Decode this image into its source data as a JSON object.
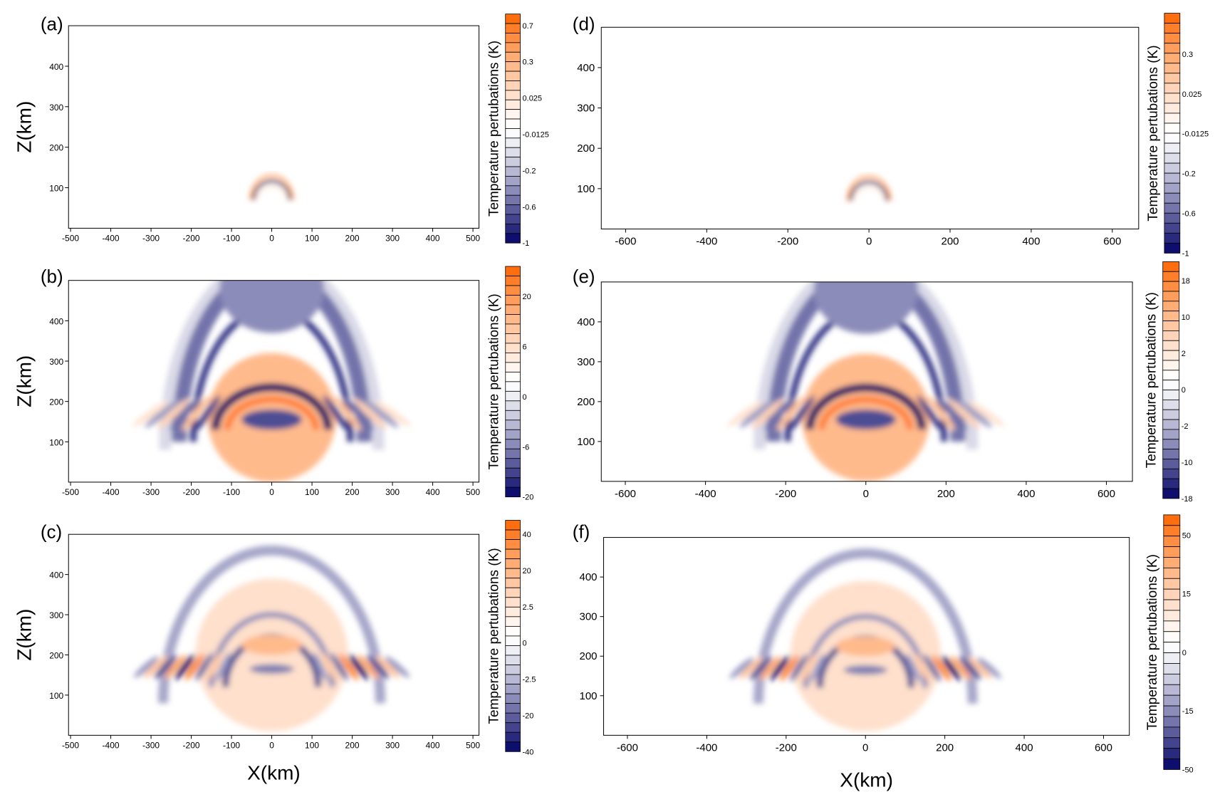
{
  "chart_data": [
    {
      "panel": "(a)",
      "type": "heatmap",
      "ylabel": "Z(km)",
      "xlabel": "",
      "xlim": [
        -505,
        515
      ],
      "ylim": [
        0,
        500
      ],
      "xticks": [
        -500,
        -400,
        -300,
        -200,
        -100,
        0,
        100,
        200,
        300,
        400,
        500
      ],
      "yticks": [
        100,
        200,
        300,
        400
      ],
      "colorbar": {
        "label": "Temperature pertubations (K)",
        "levels": 24,
        "ticks": [
          "0.7",
          "0.3",
          "0.025",
          "-0.0125",
          "-0.2",
          "-0.6",
          "-1"
        ]
      }
    },
    {
      "panel": "(b)",
      "type": "heatmap",
      "ylabel": "Z(km)",
      "xlabel": "",
      "xlim": [
        -505,
        515
      ],
      "ylim": [
        0,
        500
      ],
      "xticks": [
        -500,
        -400,
        -300,
        -200,
        -100,
        0,
        100,
        200,
        300,
        400,
        500
      ],
      "yticks": [
        100,
        200,
        300,
        400
      ],
      "colorbar": {
        "label": "Temperature pertubations (K)",
        "levels": 24,
        "ticks": [
          "20",
          "6",
          "0",
          "-6",
          "-20"
        ]
      }
    },
    {
      "panel": "(c)",
      "type": "heatmap",
      "ylabel": "Z(km)",
      "xlabel": "X(km)",
      "xlim": [
        -505,
        515
      ],
      "ylim": [
        0,
        500
      ],
      "xticks": [
        -500,
        -400,
        -300,
        -200,
        -100,
        0,
        100,
        200,
        300,
        400,
        500
      ],
      "yticks": [
        100,
        200,
        300,
        400
      ],
      "colorbar": {
        "label": "Temperature pertubations (K)",
        "levels": 24,
        "ticks": [
          "40",
          "20",
          "2.5",
          "0",
          "-2.5",
          "-20",
          "-40"
        ]
      }
    },
    {
      "panel": "(d)",
      "type": "heatmap",
      "ylabel": "",
      "xlabel": "",
      "xlim": [
        -660,
        665
      ],
      "ylim": [
        0,
        500
      ],
      "xticks": [
        -600,
        -400,
        -200,
        0,
        200,
        400,
        600
      ],
      "yticks": [
        100,
        200,
        300,
        400
      ],
      "colorbar": {
        "label": "Temperature pertubations (K)",
        "levels": 24,
        "ticks": [
          "0.3",
          "0.025",
          "-0.0125",
          "-0.2",
          "-0.6",
          "-1"
        ]
      }
    },
    {
      "panel": "(e)",
      "type": "heatmap",
      "ylabel": "",
      "xlabel": "",
      "xlim": [
        -660,
        665
      ],
      "ylim": [
        0,
        500
      ],
      "xticks": [
        -600,
        -400,
        -200,
        0,
        200,
        400,
        600
      ],
      "yticks": [
        100,
        200,
        300,
        400
      ],
      "colorbar": {
        "label": "Temperature pertubations (K)",
        "levels": 24,
        "ticks": [
          "18",
          "10",
          "2",
          "0",
          "-2",
          "-10",
          "-18"
        ]
      }
    },
    {
      "panel": "(f)",
      "type": "heatmap",
      "ylabel": "",
      "xlabel": "X(km)",
      "xlim": [
        -660,
        665
      ],
      "ylim": [
        0,
        500
      ],
      "xticks": [
        -600,
        -400,
        -200,
        0,
        200,
        400,
        600
      ],
      "yticks": [
        100,
        200,
        300,
        400
      ],
      "colorbar": {
        "label": "Temperature pertubations (K)",
        "levels": 24,
        "ticks": [
          "50",
          "15",
          "0",
          "-15",
          "-50"
        ]
      }
    }
  ],
  "colors": {
    "negative": "#000066",
    "zero": "#ffffff",
    "positive": "#ff6600"
  }
}
